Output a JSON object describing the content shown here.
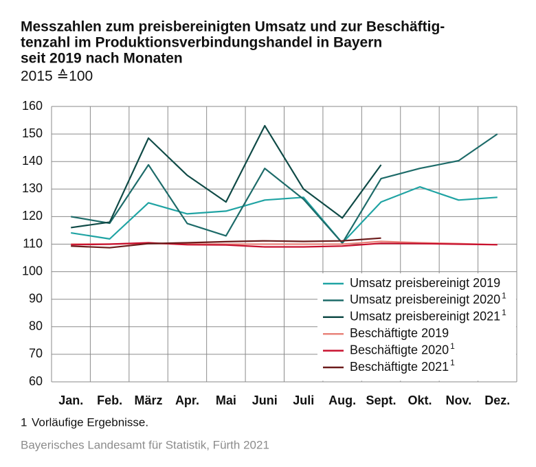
{
  "chart_data": {
    "type": "line",
    "title_lines": [
      "Messzahlen zum preisbereinigten Umsatz und zur Beschäftig-",
      "tenzahl im Produktionsverbindungshandel in Bayern",
      "seit 2019 nach Monaten"
    ],
    "subtitle": "2015 ≙100",
    "categories": [
      "Jan.",
      "Feb.",
      "März",
      "Apr.",
      "Mai",
      "Juni",
      "Juli",
      "Aug.",
      "Sept.",
      "Okt.",
      "Nov.",
      "Dez."
    ],
    "ylim": [
      60,
      160
    ],
    "yticks": [
      60,
      70,
      80,
      90,
      100,
      110,
      120,
      130,
      140,
      150,
      160
    ],
    "grid": true,
    "legend": "lower right",
    "series": [
      {
        "name": "Umsatz preisbereinigt 2019",
        "color": "#1fa3a3",
        "values": [
          114.1,
          111.9,
          125,
          121,
          122,
          126,
          127,
          110.4,
          125.3,
          130.8,
          126,
          127
        ]
      },
      {
        "name": "Umsatz preisbereinigt 2020",
        "footnote_ref": "1",
        "color": "#1d6b69",
        "values": [
          120,
          117.6,
          138.8,
          117.5,
          113,
          137.5,
          126.3,
          110.4,
          133.8,
          137.5,
          140.3,
          150
        ]
      },
      {
        "name": "Umsatz preisbereinigt 2021",
        "footnote_ref": "1",
        "color": "#0f4a46",
        "values": [
          116,
          118,
          148.5,
          135,
          125.3,
          153,
          130,
          119.5,
          138.8,
          null,
          null,
          null
        ]
      },
      {
        "name": "Beschäftigte 2019",
        "color": "#e8837a",
        "values": [
          110,
          110,
          110.3,
          110,
          110,
          110,
          110,
          110,
          111,
          110.5,
          110.2,
          109.8
        ]
      },
      {
        "name": "Beschäftigte 2020",
        "footnote_ref": "1",
        "color": "#c8102e",
        "values": [
          109.8,
          110,
          110.5,
          109.8,
          109.7,
          109,
          109,
          109.3,
          110.3,
          110.2,
          110,
          109.8
        ]
      },
      {
        "name": "Beschäftigte 2021",
        "footnote_ref": "1",
        "color": "#6b1a1a",
        "values": [
          109.3,
          108.7,
          110.2,
          110.5,
          110.9,
          111.2,
          111,
          111.2,
          112.2,
          null,
          null,
          null
        ]
      }
    ],
    "footnote": {
      "ref": "1",
      "text": "Vorläufige Ergebnisse."
    },
    "source": "Bayerisches Landesamt für Statistik, Fürth 2021"
  }
}
